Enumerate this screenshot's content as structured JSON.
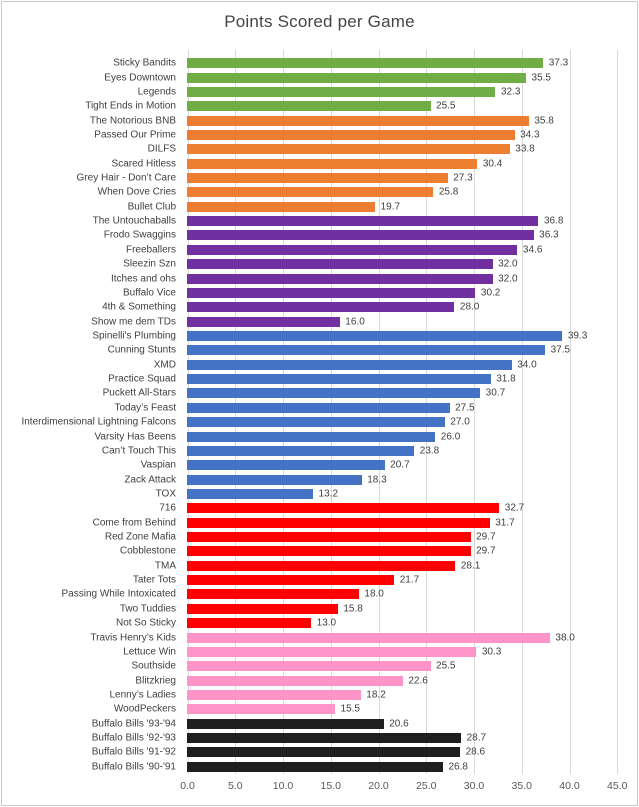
{
  "chart_data": {
    "type": "bar",
    "orientation": "horizontal",
    "title": "Points Scored per Game",
    "xlabel": "",
    "ylabel": "",
    "xlim": [
      0,
      45
    ],
    "grid": true,
    "legend": false,
    "x_ticks": [
      "0.0",
      "5.0",
      "10.0",
      "15.0",
      "20.0",
      "25.0",
      "30.0",
      "35.0",
      "40.0",
      "45.0"
    ],
    "x_tick_values": [
      0,
      5,
      10,
      15,
      20,
      25,
      30,
      35,
      40,
      45
    ],
    "group_colors": {
      "green": "#70AD47",
      "orange": "#ED7D31",
      "purple": "#7030A0",
      "blue": "#4472C4",
      "red": "#FF0000",
      "pink": "#FF94C8",
      "black": "#1F1F1F"
    },
    "bars": [
      {
        "label": "Sticky Bandits",
        "value": 37.3,
        "display": "37.3",
        "group": "green"
      },
      {
        "label": "Eyes Downtown",
        "value": 35.5,
        "display": "35.5",
        "group": "green"
      },
      {
        "label": "Legends",
        "value": 32.3,
        "display": "32.3",
        "group": "green"
      },
      {
        "label": "Tight Ends in Motion",
        "value": 25.5,
        "display": "25.5",
        "group": "green"
      },
      {
        "label": "The Notorious BNB",
        "value": 35.8,
        "display": "35.8",
        "group": "orange"
      },
      {
        "label": "Passed Our Prime",
        "value": 34.3,
        "display": "34.3",
        "group": "orange"
      },
      {
        "label": "DILFS",
        "value": 33.8,
        "display": "33.8",
        "group": "orange"
      },
      {
        "label": "Scared Hitless",
        "value": 30.4,
        "display": "30.4",
        "group": "orange"
      },
      {
        "label": "Grey Hair - Don’t Care",
        "value": 27.3,
        "display": "27.3",
        "group": "orange"
      },
      {
        "label": "When Dove Cries",
        "value": 25.8,
        "display": "25.8",
        "group": "orange"
      },
      {
        "label": "Bullet Club",
        "value": 19.7,
        "display": "19.7",
        "group": "orange"
      },
      {
        "label": "The Untouchaballs",
        "value": 36.8,
        "display": "36.8",
        "group": "purple"
      },
      {
        "label": "Frodo Swaggins",
        "value": 36.3,
        "display": "36.3",
        "group": "purple"
      },
      {
        "label": "Freeballers",
        "value": 34.6,
        "display": "34.6",
        "group": "purple"
      },
      {
        "label": "Sleezin Szn",
        "value": 32.0,
        "display": "32.0",
        "group": "purple"
      },
      {
        "label": "Itches and ohs",
        "value": 32.0,
        "display": "32.0",
        "group": "purple"
      },
      {
        "label": "Buffalo Vice",
        "value": 30.2,
        "display": "30.2",
        "group": "purple"
      },
      {
        "label": "4th & Something",
        "value": 28.0,
        "display": "28.0",
        "group": "purple"
      },
      {
        "label": "Show me dem TDs",
        "value": 16.0,
        "display": "16.0",
        "group": "purple"
      },
      {
        "label": "Spinelli's Plumbing",
        "value": 39.3,
        "display": "39.3",
        "group": "blue"
      },
      {
        "label": "Cunning Stunts",
        "value": 37.5,
        "display": "37.5",
        "group": "blue"
      },
      {
        "label": "XMD",
        "value": 34.0,
        "display": "34.0",
        "group": "blue"
      },
      {
        "label": "Practice Squad",
        "value": 31.8,
        "display": "31.8",
        "group": "blue"
      },
      {
        "label": "Puckett All-Stars",
        "value": 30.7,
        "display": "30.7",
        "group": "blue"
      },
      {
        "label": "Today’s Feast",
        "value": 27.5,
        "display": "27.5",
        "group": "blue"
      },
      {
        "label": "Interdimensional Lightning Falcons",
        "value": 27.0,
        "display": "27.0",
        "group": "blue"
      },
      {
        "label": "Varsity Has Beens",
        "value": 26.0,
        "display": "26.0",
        "group": "blue"
      },
      {
        "label": "Can’t Touch This",
        "value": 23.8,
        "display": "23.8",
        "group": "blue"
      },
      {
        "label": "Vaspian",
        "value": 20.7,
        "display": "20.7",
        "group": "blue"
      },
      {
        "label": "Zack Attack",
        "value": 18.3,
        "display": "18.3",
        "group": "blue"
      },
      {
        "label": "TOX",
        "value": 13.2,
        "display": "13.2",
        "group": "blue"
      },
      {
        "label": "716",
        "value": 32.7,
        "display": "32.7",
        "group": "red"
      },
      {
        "label": "Come from Behind",
        "value": 31.7,
        "display": "31.7",
        "group": "red"
      },
      {
        "label": "Red Zone Mafia",
        "value": 29.7,
        "display": "29.7",
        "group": "red"
      },
      {
        "label": "Cobblestone",
        "value": 29.7,
        "display": "29.7",
        "group": "red"
      },
      {
        "label": "TMA",
        "value": 28.1,
        "display": "28.1",
        "group": "red"
      },
      {
        "label": "Tater Tots",
        "value": 21.7,
        "display": "21.7",
        "group": "red"
      },
      {
        "label": "Passing While Intoxicated",
        "value": 18.0,
        "display": "18.0",
        "group": "red"
      },
      {
        "label": "Two Tuddies",
        "value": 15.8,
        "display": "15.8",
        "group": "red"
      },
      {
        "label": "Not So Sticky",
        "value": 13.0,
        "display": "13.0",
        "group": "red"
      },
      {
        "label": "Travis Henry’s Kids",
        "value": 38.0,
        "display": "38.0",
        "group": "pink"
      },
      {
        "label": "Lettuce Win",
        "value": 30.3,
        "display": "30.3",
        "group": "pink"
      },
      {
        "label": "Southside",
        "value": 25.5,
        "display": "25.5",
        "group": "pink"
      },
      {
        "label": "Blitzkrieg",
        "value": 22.6,
        "display": "22.6",
        "group": "pink"
      },
      {
        "label": "Lenny’s Ladies",
        "value": 18.2,
        "display": "18.2",
        "group": "pink"
      },
      {
        "label": "WoodPeckers",
        "value": 15.5,
        "display": "15.5",
        "group": "pink"
      },
      {
        "label": "Buffalo Bills '93-'94",
        "value": 20.6,
        "display": "20.6",
        "group": "black"
      },
      {
        "label": "Buffalo Bills '92-'93",
        "value": 28.7,
        "display": "28.7",
        "group": "black"
      },
      {
        "label": "Buffalo Bills '91-'92",
        "value": 28.6,
        "display": "28.6",
        "group": "black"
      },
      {
        "label": "Buffalo Bills '90-'91",
        "value": 26.8,
        "display": "26.8",
        "group": "black"
      }
    ]
  }
}
